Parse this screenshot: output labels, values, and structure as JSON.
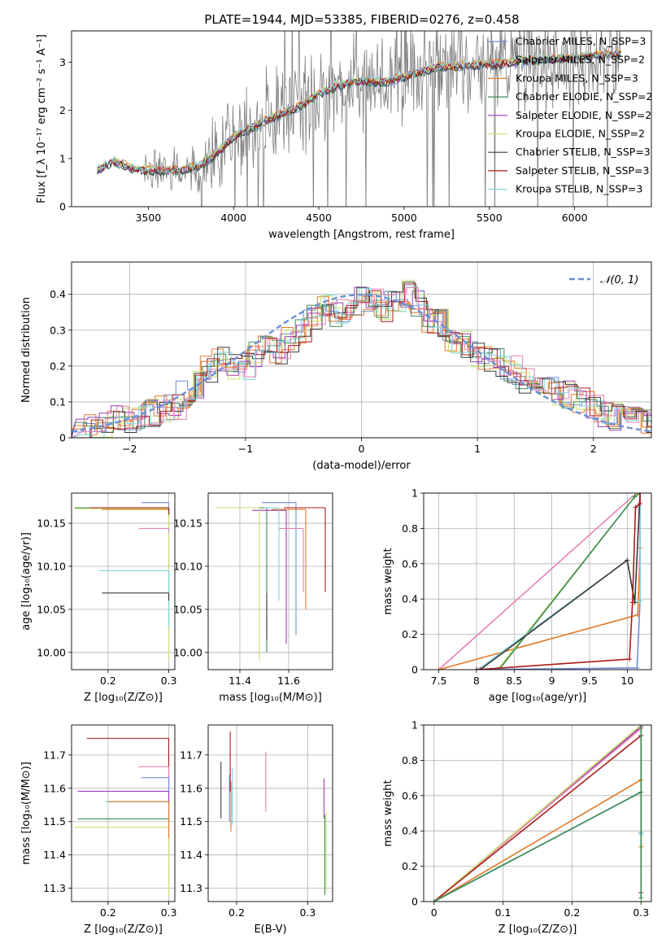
{
  "figure_title": "PLATE=1944, MJD=53385, FIBERID=0276, z=0.458",
  "series_colors": [
    "#6d8fd6",
    "#e8763a",
    "#e07a28",
    "#3d8a55",
    "#9b3db5",
    "#c8e070",
    "#3a3a3a",
    "#a81c1c",
    "#7fd3dd"
  ],
  "extra_colors": {
    "pink": "#e57fb5",
    "data_gray": "#808080",
    "grid": "#b0b0b0"
  },
  "chart_data": [
    {
      "id": "spectrum",
      "type": "line",
      "xlabel": "wavelength [Angstrom, rest frame]",
      "ylabel": "Flux [f_λ 10⁻¹⁷ erg cm⁻² s⁻¹ A⁻¹]",
      "xlim": [
        3050,
        6450
      ],
      "ylim": [
        0,
        3.65
      ],
      "xticks": [
        3500,
        4000,
        4500,
        5000,
        5500,
        6000
      ],
      "yticks": [
        0,
        1,
        2,
        3
      ],
      "grid": false,
      "legend_position": "top-right",
      "legend": [
        {
          "name": "Chabrier MILES",
          "nssp": "N_SSP=3"
        },
        {
          "name": "Salpeter MILES",
          "nssp": "N_SSP=2"
        },
        {
          "name": "Kroupa MILES",
          "nssp": "N_SSP=3"
        },
        {
          "name": "Chabrier ELODIE",
          "nssp": "N_SSP=2"
        },
        {
          "name": "Salpeter ELODIE",
          "nssp": "N_SSP=2"
        },
        {
          "name": "Kroupa ELODIE",
          "nssp": "N_SSP=2"
        },
        {
          "name": "Chabrier STELIB",
          "nssp": "N_SSP=3"
        },
        {
          "name": "Salpeter STELIB",
          "nssp": "N_SSP=3"
        },
        {
          "name": "Kroupa STELIB",
          "nssp": "N_SSP=3"
        }
      ],
      "model_trend": [
        [
          3200,
          0.75
        ],
        [
          3300,
          0.95
        ],
        [
          3400,
          0.8
        ],
        [
          3500,
          0.75
        ],
        [
          3700,
          0.75
        ],
        [
          3800,
          0.85
        ],
        [
          3900,
          1.1
        ],
        [
          4000,
          1.45
        ],
        [
          4200,
          1.8
        ],
        [
          4400,
          2.1
        ],
        [
          4500,
          2.35
        ],
        [
          4700,
          2.6
        ],
        [
          4900,
          2.6
        ],
        [
          5000,
          2.7
        ],
        [
          5200,
          2.9
        ],
        [
          5500,
          2.95
        ],
        [
          5800,
          3.05
        ],
        [
          6000,
          3.1
        ],
        [
          6200,
          3.15
        ],
        [
          6270,
          3.2
        ]
      ]
    },
    {
      "id": "residuals",
      "type": "line",
      "xlabel": "(data-model)/error",
      "ylabel": "Normed distribution",
      "xlim": [
        -2.5,
        2.5
      ],
      "ylim": [
        0,
        0.49
      ],
      "xticks": [
        -2,
        -1,
        0,
        1,
        2
      ],
      "yticks": [
        0.0,
        0.1,
        0.2,
        0.3,
        0.4
      ],
      "grid": true,
      "legend_position": "top-right",
      "legend_label": "𝒩(0, 1)",
      "gaussian": {
        "mean": 0,
        "sigma": 1
      },
      "hist_base": [
        0.02,
        0.03,
        0.04,
        0.05,
        0.05,
        0.06,
        0.07,
        0.08,
        0.09,
        0.12,
        0.15,
        0.19,
        0.22,
        0.2,
        0.2,
        0.23,
        0.26,
        0.24,
        0.27,
        0.3,
        0.33,
        0.37,
        0.35,
        0.36,
        0.38,
        0.39,
        0.36,
        0.37,
        0.4,
        0.37,
        0.33,
        0.32,
        0.27,
        0.26,
        0.23,
        0.22,
        0.21,
        0.19,
        0.16,
        0.17,
        0.14,
        0.13,
        0.12,
        0.1,
        0.09,
        0.07,
        0.06,
        0.07,
        0.06,
        0.05
      ]
    },
    {
      "id": "age-vs-Z",
      "type": "scatter",
      "xlabel": "Z [log₁₀(Z/Z⊙)]",
      "ylabel": "age  [log₁₀(age/yr)]",
      "xlim": [
        0.14,
        0.31
      ],
      "ylim": [
        9.98,
        10.185
      ],
      "xticks": [
        0.2,
        0.3
      ],
      "yticks": [
        10.0,
        10.05,
        10.1,
        10.15
      ],
      "ytick_labels": [
        "10.00",
        "10.05",
        "10.10",
        "10.15"
      ],
      "grid": true,
      "points": [
        {
          "series": 0,
          "x": 0.3,
          "y": 10.174,
          "xlo": 0.255,
          "ylo": 10.02
        },
        {
          "series": 1,
          "x": 0.3,
          "y": 10.168,
          "xlo": 0.16,
          "ylo": 10.16
        },
        {
          "series": 2,
          "x": 0.3,
          "y": 10.166,
          "xlo": 0.19,
          "ylo": 10.16
        },
        {
          "series": 3,
          "x": 0.3,
          "y": 10.168,
          "xlo": 0.145,
          "ylo": 10.16
        },
        {
          "series": 5,
          "x": 0.3,
          "y": 10.167,
          "xlo": 0.145,
          "ylo": 9.99
        },
        {
          "series": "pink",
          "x": 0.3,
          "y": 10.144,
          "xlo": 0.25,
          "ylo": 10.14
        },
        {
          "series": 8,
          "x": 0.3,
          "y": 10.095,
          "xlo": 0.185,
          "ylo": 10.03
        },
        {
          "series": 6,
          "x": 0.3,
          "y": 10.069,
          "xlo": 0.19,
          "ylo": 10.06
        },
        {
          "series": 7,
          "x": 0.3,
          "y": 10.168,
          "xlo": 0.17,
          "ylo": 10.16
        }
      ]
    },
    {
      "id": "age-vs-mass",
      "type": "scatter",
      "xlabel": "mass [log₁₀(M/M⊙)]",
      "ylabel": "",
      "xlim": [
        11.27,
        11.78
      ],
      "ylim": [
        9.98,
        10.185
      ],
      "xticks": [
        11.4,
        11.6
      ],
      "yticks": [
        10.0,
        10.05,
        10.1,
        10.15
      ],
      "ytick_labels": [
        "10.00",
        "10.05",
        "10.10",
        "10.15"
      ],
      "grid": true,
      "points": [
        {
          "series": 0,
          "x": 11.63,
          "y": 10.174,
          "xlo": 11.49,
          "ylo": 10.02
        },
        {
          "series": 2,
          "x": 11.67,
          "y": 10.166,
          "xlo": 11.53,
          "ylo": 10.05
        },
        {
          "series": 3,
          "x": 11.51,
          "y": 10.168,
          "xlo": 11.3,
          "ylo": 10.0
        },
        {
          "series": 4,
          "x": 11.59,
          "y": 10.165,
          "xlo": 11.45,
          "ylo": 10.01
        },
        {
          "series": 5,
          "x": 11.48,
          "y": 10.168,
          "xlo": 11.3,
          "ylo": 9.99
        },
        {
          "series": "pink",
          "x": 11.66,
          "y": 10.144,
          "xlo": 11.56,
          "ylo": 10.07
        },
        {
          "series": 8,
          "x": 11.56,
          "y": 10.168,
          "xlo": 11.5,
          "ylo": 10.06
        },
        {
          "series": 6,
          "x": 11.51,
          "y": 10.069,
          "xlo": 11.51,
          "ylo": 10.015
        },
        {
          "series": 7,
          "x": 11.75,
          "y": 10.168,
          "xlo": 11.58,
          "ylo": 10.07
        }
      ]
    },
    {
      "id": "weight-vs-age",
      "type": "line",
      "xlabel": "age  [log₁₀(age/yr)]",
      "ylabel": "mass weight",
      "xlim": [
        7.3,
        10.32
      ],
      "ylim": [
        0,
        1
      ],
      "xticks": [
        7.5,
        8.0,
        8.5,
        9.0,
        9.5,
        10.0
      ],
      "yticks": [
        0.0,
        0.2,
        0.4,
        0.6,
        0.8,
        1.0
      ],
      "grid": true,
      "lines": [
        {
          "series": "pink",
          "points": [
            [
              7.5,
              0.0
            ],
            [
              10.12,
              1.0
            ]
          ]
        },
        {
          "series": 2,
          "points": [
            [
              7.5,
              0.0
            ],
            [
              10.14,
              0.31
            ],
            [
              10.17,
              0.69
            ],
            [
              10.17,
              1.0
            ]
          ]
        },
        {
          "series": 5,
          "points": [
            [
              8.28,
              0.0
            ],
            [
              10.12,
              0.99
            ],
            [
              10.17,
              1.0
            ]
          ]
        },
        {
          "series": 3,
          "points": [
            [
              8.3,
              0.0
            ],
            [
              10.1,
              0.98
            ],
            [
              10.17,
              1.0
            ]
          ]
        },
        {
          "series": 0,
          "points": [
            [
              8.0,
              0.0
            ],
            [
              10.13,
              0.01
            ],
            [
              10.17,
              0.39
            ],
            [
              10.17,
              1.0
            ]
          ]
        },
        {
          "series": 8,
          "points": [
            [
              8.02,
              0.0
            ],
            [
              10.0,
              0.62
            ],
            [
              10.1,
              0.38
            ],
            [
              10.17,
              0.39
            ],
            [
              10.17,
              1.0
            ]
          ]
        },
        {
          "series": 6,
          "points": [
            [
              8.05,
              0.0
            ],
            [
              10.0,
              0.62
            ],
            [
              10.1,
              0.38
            ],
            [
              10.17,
              1.0
            ]
          ]
        },
        {
          "series": 7,
          "points": [
            [
              8.0,
              0.0
            ],
            [
              10.03,
              0.06
            ],
            [
              10.07,
              0.38
            ],
            [
              10.11,
              0.92
            ],
            [
              10.17,
              0.94
            ],
            [
              10.17,
              1.0
            ]
          ]
        }
      ]
    },
    {
      "id": "mass-vs-Z",
      "type": "scatter",
      "xlabel": "Z [log₁₀(Z/Z⊙)]",
      "ylabel": "mass [log₁₀(M/M⊙)]",
      "xlim": [
        0.14,
        0.31
      ],
      "ylim": [
        11.26,
        11.79
      ],
      "xticks": [
        0.2,
        0.3
      ],
      "yticks": [
        11.3,
        11.4,
        11.5,
        11.6,
        11.7
      ],
      "grid": true,
      "points": [
        {
          "series": 7,
          "x": 0.3,
          "y": 11.75,
          "xlo": 0.165,
          "ylo": 11.6
        },
        {
          "series": "pink",
          "x": 0.3,
          "y": 11.665,
          "xlo": 0.25,
          "ylo": 11.6
        },
        {
          "series": 0,
          "x": 0.3,
          "y": 11.632,
          "xlo": 0.255,
          "ylo": 11.5
        },
        {
          "series": 4,
          "x": 0.3,
          "y": 11.591,
          "xlo": 0.15,
          "ylo": 11.5
        },
        {
          "series": 8,
          "x": 0.3,
          "y": 11.56,
          "xlo": 0.195,
          "ylo": 11.5
        },
        {
          "series": 3,
          "x": 0.3,
          "y": 11.508,
          "xlo": 0.15,
          "ylo": 11.3
        },
        {
          "series": 5,
          "x": 0.3,
          "y": 11.483,
          "xlo": 0.145,
          "ylo": 11.28
        },
        {
          "series": 2,
          "x": 0.3,
          "y": 11.56,
          "xlo": 0.2,
          "ylo": 11.45
        }
      ]
    },
    {
      "id": "mass-vs-ebv",
      "type": "scatter",
      "xlabel": "E(B-V)",
      "ylabel": "",
      "xlim": [
        0.16,
        0.335
      ],
      "ylim": [
        11.26,
        11.79
      ],
      "xticks": [
        0.2,
        0.3
      ],
      "yticks": [
        11.3,
        11.4,
        11.5,
        11.6,
        11.7
      ],
      "grid": true,
      "vbars": [
        {
          "series": 6,
          "x": 0.178,
          "lo": 11.51,
          "hi": 11.68
        },
        {
          "series": 0,
          "x": 0.19,
          "lo": 11.5,
          "hi": 11.64
        },
        {
          "series": 2,
          "x": 0.192,
          "lo": 11.47,
          "hi": 11.62
        },
        {
          "series": 8,
          "x": 0.194,
          "lo": 11.49,
          "hi": 11.66
        },
        {
          "series": 7,
          "x": 0.191,
          "lo": 11.59,
          "hi": 11.77
        },
        {
          "series": "pink",
          "x": 0.241,
          "lo": 11.53,
          "hi": 11.71
        },
        {
          "series": 4,
          "x": 0.323,
          "lo": 11.51,
          "hi": 11.63
        },
        {
          "series": 3,
          "x": 0.324,
          "lo": 11.28,
          "hi": 11.52
        },
        {
          "series": 5,
          "x": 0.326,
          "lo": 11.29,
          "hi": 11.53
        }
      ]
    },
    {
      "id": "weight-vs-Z",
      "type": "line",
      "xlabel": "Z [log₁₀(Z/Z⊙)]",
      "ylabel": "mass weight",
      "xlim": [
        -0.015,
        0.315
      ],
      "ylim": [
        0,
        1
      ],
      "xticks": [
        0.0,
        0.1,
        0.2,
        0.3
      ],
      "yticks": [
        0.0,
        0.2,
        0.4,
        0.6,
        0.8,
        1.0
      ],
      "grid": true,
      "lines": [
        {
          "series": 4,
          "points": [
            [
              0.0,
              0.0
            ],
            [
              0.3,
              0.99
            ],
            [
              0.3,
              1.0
            ]
          ]
        },
        {
          "series": "pink",
          "points": [
            [
              0.0,
              0.0
            ],
            [
              0.3,
              0.98
            ],
            [
              0.3,
              1.0
            ]
          ]
        },
        {
          "series": 5,
          "points": [
            [
              0.0,
              0.0
            ],
            [
              0.3,
              1.0
            ]
          ]
        },
        {
          "series": 7,
          "points": [
            [
              0.0,
              0.0
            ],
            [
              0.3,
              0.94
            ],
            [
              0.3,
              0.05
            ],
            [
              0.3,
              1.0
            ]
          ]
        },
        {
          "series": 2,
          "points": [
            [
              0.0,
              0.0
            ],
            [
              0.3,
              0.69
            ],
            [
              0.3,
              0.31
            ],
            [
              0.3,
              1.0
            ]
          ]
        },
        {
          "series": 0,
          "points": [
            [
              0.0,
              0.0
            ],
            [
              0.3,
              0.62
            ],
            [
              0.3,
              0.39
            ],
            [
              0.3,
              1.0
            ]
          ]
        },
        {
          "series": 8,
          "points": [
            [
              0.0,
              0.0
            ],
            [
              0.3,
              0.62
            ],
            [
              0.3,
              0.38
            ],
            [
              0.3,
              1.0
            ]
          ]
        },
        {
          "series": 3,
          "points": [
            [
              0.0,
              0.0
            ],
            [
              0.3,
              0.62
            ],
            [
              0.3,
              0.02
            ],
            [
              0.3,
              1.0
            ]
          ]
        }
      ]
    }
  ]
}
